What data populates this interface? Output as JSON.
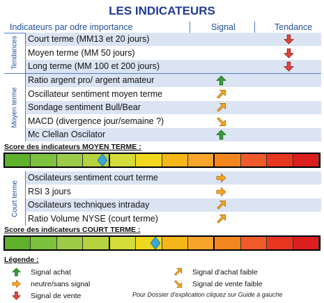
{
  "title": "LES INDICATEURS",
  "header": {
    "col_indicator": "Indicateurs par odre importance",
    "col_signal": "Signal",
    "col_tendance": "Tendance"
  },
  "groups": {
    "tendances": {
      "label": "Tendances",
      "rows": [
        {
          "label": "Court terme (MM13 et 20 jours)",
          "signal": "",
          "tendance": "vente"
        },
        {
          "label": "Moyen terme (MM 50 jours)",
          "signal": "",
          "tendance": "vente"
        },
        {
          "label": "Long terme (MM 100 et 200 jours)",
          "signal": "",
          "tendance": "vente"
        }
      ]
    },
    "moyen_terme": {
      "label": "Moyen terme",
      "rows": [
        {
          "label": "Ratio argent pro/ argent amateur",
          "signal": "achat"
        },
        {
          "label": "Oscillateur sentiment moyen terme",
          "signal": "achat-faible"
        },
        {
          "label": "Sondage sentiment Bull/Bear",
          "signal": "achat-faible"
        },
        {
          "label": "MACD (divergence jour/semaine ?)",
          "signal": "vente-faible"
        },
        {
          "label": "Mc Clellan Oscilator",
          "signal": "achat"
        }
      ]
    },
    "court_terme": {
      "label": "Court terme",
      "rows": [
        {
          "label": "Oscilateurs sentiment court terme",
          "signal": "neutre"
        },
        {
          "label": "RSI 3 jours",
          "signal": "neutre"
        },
        {
          "label": "Oscilateurs techniques intraday",
          "signal": "achat-faible"
        },
        {
          "label": "Ratio Volume NYSE (court terme)",
          "signal": "achat-faible"
        }
      ]
    }
  },
  "scores": {
    "moyen_terme": {
      "label": "Score des indicateurs MOYEN TERME :",
      "value": 0.31
    },
    "court_terme": {
      "label": "Score des indicateurs COURT TERME :",
      "value": 0.48
    }
  },
  "score_colors": [
    "#5fb02a",
    "#7cc23c",
    "#9ccb4a",
    "#b5d33f",
    "#d4dc3a",
    "#f0d81c",
    "#f5b61a",
    "#f6a42a",
    "#f3861f",
    "#ee5a2a",
    "#e8361f",
    "#dd1e1e"
  ],
  "legend": {
    "title": "Légende :",
    "items": [
      {
        "icon": "achat",
        "text": "Signal achat"
      },
      {
        "icon": "neutre",
        "text": "neutre/sans signal"
      },
      {
        "icon": "vente",
        "text": "Signal de vente"
      },
      {
        "icon": "achat-faible",
        "text": "Signal d'achat faible"
      },
      {
        "icon": "vente-faible",
        "text": "Signal de vente faible"
      }
    ],
    "footnote": "Pour Dossier d'explication cliquez sur Guide à gauche"
  },
  "colors": {
    "green": "#3a9a3a",
    "orange": "#f6a821",
    "red": "#e0443a",
    "diamond": "#3aa6d6",
    "accent": "#1f4e9c"
  }
}
